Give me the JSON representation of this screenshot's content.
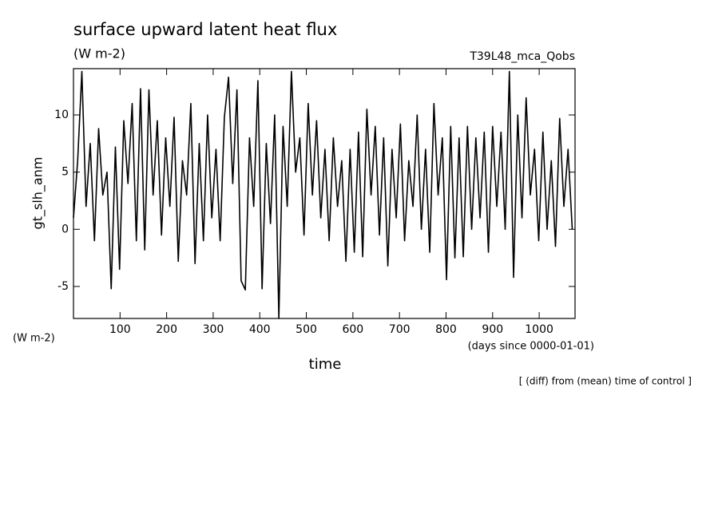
{
  "chart_data": {
    "type": "line",
    "title": "surface upward latent heat flux",
    "subtitle": "(W m-2)",
    "annotation": "T39L48_mca_Qobs",
    "y_label": "gt_slh_anm",
    "y_unit": "(W m-2)",
    "x_label": "time",
    "x_unit": "(days since 0000-01-01)",
    "footnote": "[ (diff) from (mean) time of control ]",
    "xlim": [
      0,
      1077
    ],
    "ylim": [
      -7.8,
      14.05
    ],
    "xticks": [
      100,
      200,
      300,
      400,
      500,
      600,
      700,
      800,
      900,
      1000
    ],
    "yticks": [
      -5,
      0,
      5,
      10
    ],
    "x": [
      0,
      9,
      18,
      27,
      36,
      45,
      54,
      63,
      72,
      81,
      90,
      99,
      108,
      117,
      126,
      135,
      144,
      153,
      162,
      171,
      180,
      189,
      198,
      207,
      216,
      225,
      234,
      243,
      252,
      261,
      270,
      279,
      288,
      297,
      306,
      315,
      324,
      333,
      342,
      351,
      360,
      369,
      378,
      387,
      396,
      405,
      414,
      423,
      432,
      441,
      450,
      459,
      468,
      477,
      486,
      495,
      504,
      513,
      522,
      531,
      540,
      549,
      558,
      567,
      576,
      585,
      594,
      603,
      612,
      621,
      630,
      639,
      648,
      657,
      666,
      675,
      684,
      693,
      702,
      711,
      720,
      729,
      738,
      747,
      756,
      765,
      774,
      783,
      792,
      801,
      810,
      819,
      828,
      837,
      846,
      855,
      864,
      873,
      882,
      891,
      900,
      909,
      918,
      927,
      936,
      945,
      954,
      963,
      972,
      981,
      990,
      999,
      1008,
      1017,
      1026,
      1035,
      1044,
      1053,
      1062,
      1071
    ],
    "series": [
      {
        "name": "gt_slh_anm",
        "color": "#000000",
        "values": [
          1,
          6,
          13.8,
          2,
          7.5,
          -1,
          8.8,
          3,
          5,
          -5.2,
          7.2,
          -3.5,
          9.5,
          4,
          11,
          -1,
          12.3,
          -1.8,
          12.2,
          3,
          9.5,
          -0.5,
          8,
          2,
          9.8,
          -2.8,
          6,
          3,
          11,
          -3,
          7.5,
          -1,
          10,
          1,
          7,
          -1,
          9.8,
          13.3,
          4,
          12.2,
          -4.5,
          -5.3,
          8,
          2,
          13,
          -5.2,
          7.5,
          0.5,
          10,
          -7.8,
          9,
          2,
          13.8,
          5,
          8,
          -0.5,
          11,
          3,
          9.5,
          1,
          7,
          -1,
          8,
          2,
          6,
          -2.8,
          7,
          -2,
          8.5,
          -2.4,
          10.5,
          3,
          9,
          -0.5,
          8,
          -3.2,
          7,
          1,
          9.2,
          -1,
          6,
          2,
          10,
          0,
          7,
          -2,
          11,
          3,
          8,
          -4.4,
          9,
          -2.5,
          8,
          -2.4,
          9,
          0,
          8,
          1,
          8.5,
          -2,
          9,
          2,
          8.5,
          0,
          13.8,
          -4.2,
          10,
          1,
          11.5,
          3,
          7,
          -1,
          8.5,
          0,
          6,
          -1.5,
          9.7,
          2,
          7,
          0
        ]
      }
    ]
  }
}
